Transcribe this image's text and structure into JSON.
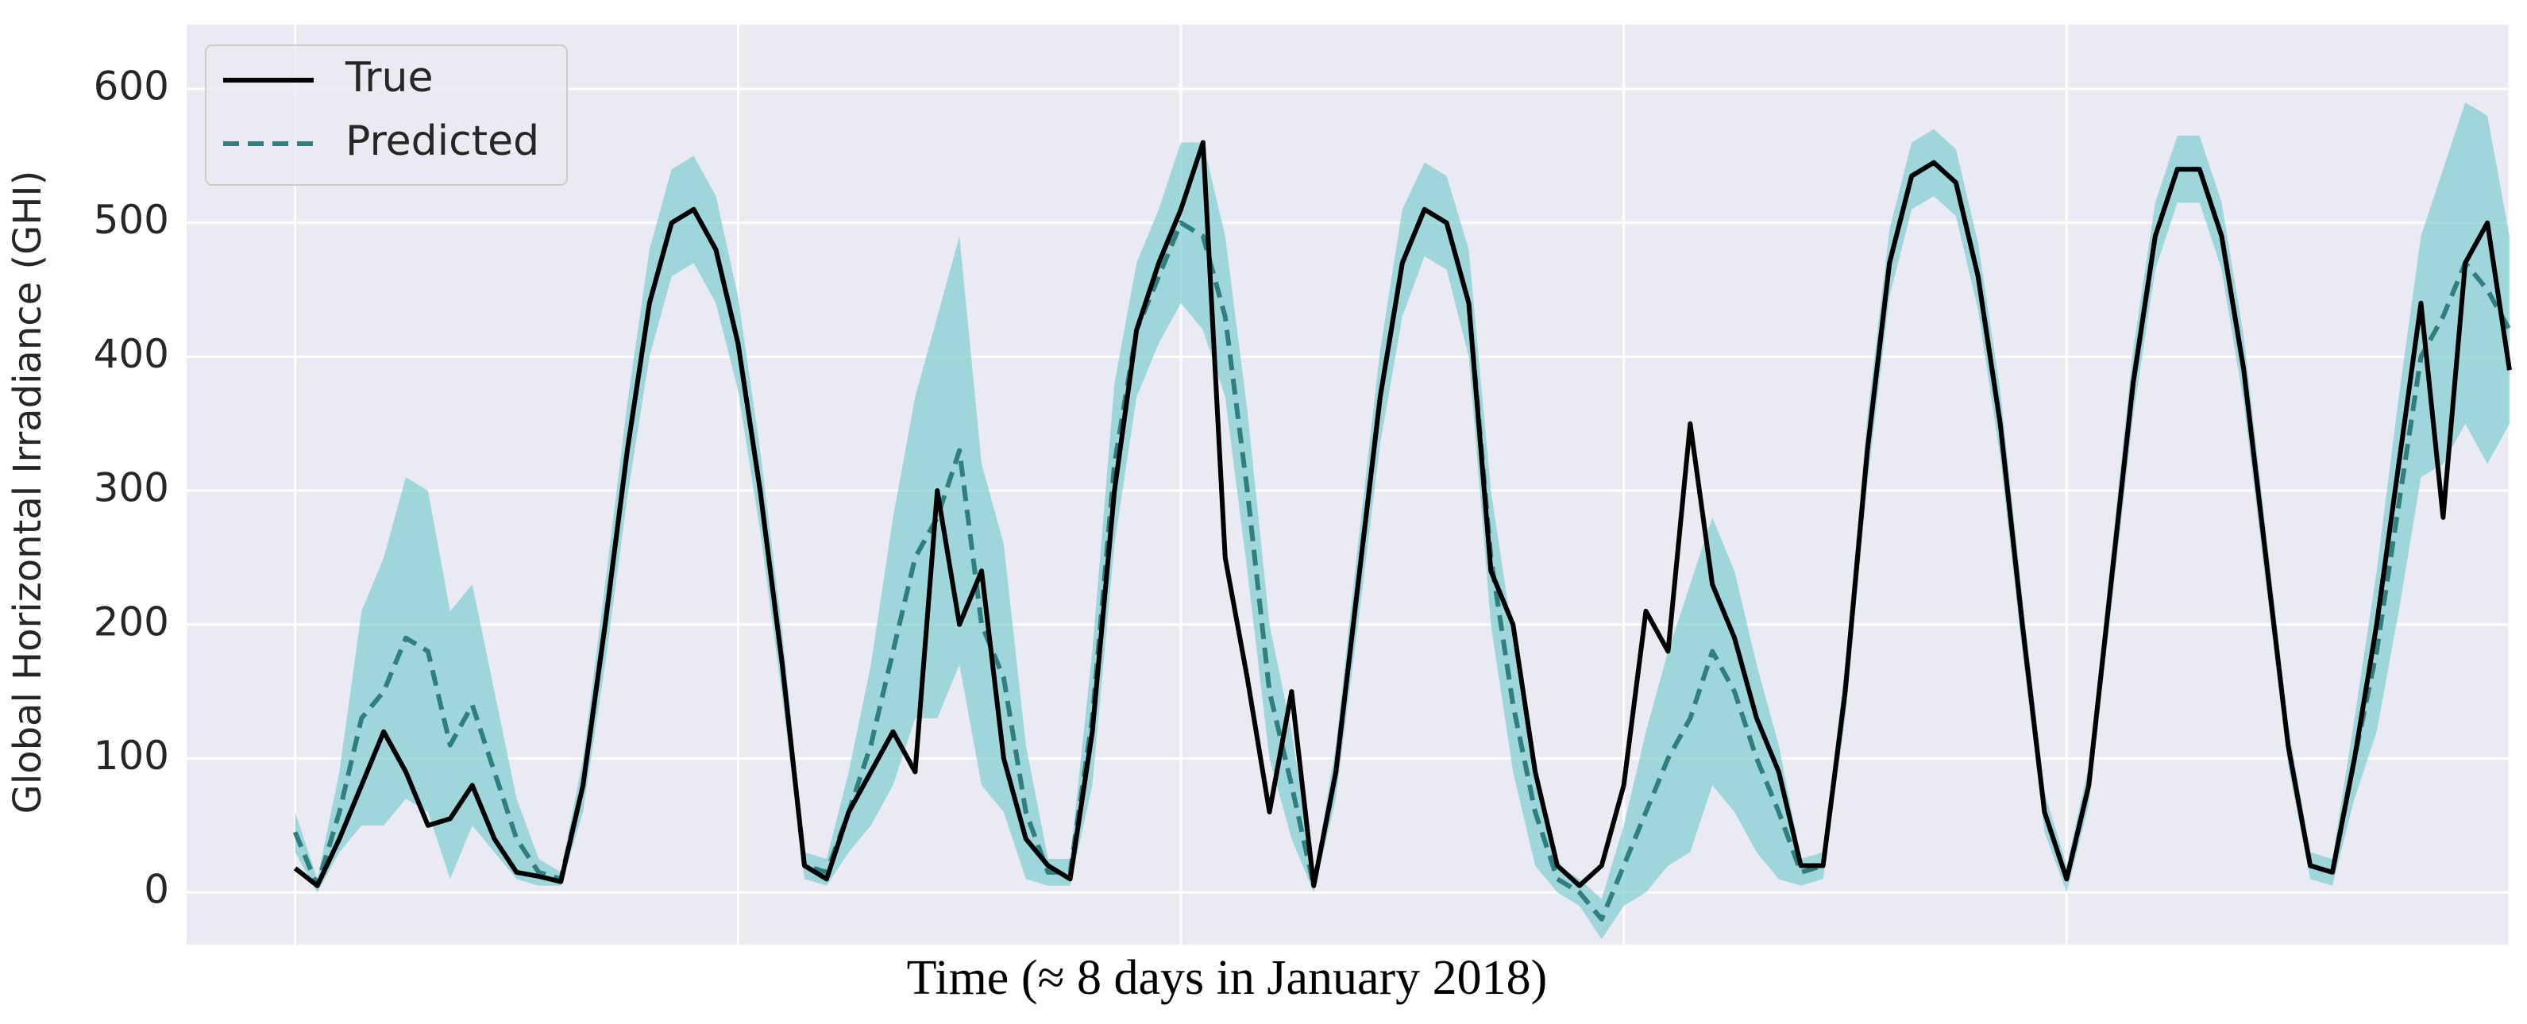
{
  "chart_data": {
    "type": "line",
    "x_label": "Time (≈ 8 days in January 2018)",
    "y_label": "Global Horizontal Irradiance (GHI)",
    "x": [
      0,
      10,
      20,
      30,
      40,
      50,
      60,
      70,
      80,
      90,
      100,
      110,
      120,
      130,
      140,
      150,
      160,
      170,
      180,
      190,
      200,
      210,
      220,
      230,
      240,
      250,
      260,
      270,
      280,
      290,
      300,
      310,
      320,
      330,
      340,
      350,
      360,
      370,
      380,
      390,
      400,
      410,
      420,
      430,
      440,
      450,
      460,
      470,
      480,
      490,
      500,
      510,
      520,
      530,
      540,
      550,
      560,
      570,
      580,
      590,
      600,
      610,
      620,
      630,
      640,
      650,
      660,
      670,
      680,
      690,
      700,
      710,
      720,
      730,
      740,
      750,
      760,
      770,
      780,
      790,
      800,
      810,
      820,
      830,
      840,
      850,
      860,
      870,
      880,
      890,
      900,
      910,
      920,
      930,
      940,
      950,
      960,
      970,
      980,
      990,
      1000
    ],
    "series": [
      {
        "name": "True",
        "color": "#000000",
        "dash": false,
        "values": [
          18,
          5,
          40,
          80,
          120,
          90,
          50,
          55,
          80,
          40,
          15,
          12,
          8,
          80,
          200,
          330,
          440,
          500,
          510,
          480,
          410,
          300,
          170,
          20,
          10,
          60,
          90,
          120,
          90,
          300,
          200,
          240,
          100,
          40,
          20,
          10,
          120,
          300,
          420,
          470,
          510,
          560,
          250,
          160,
          60,
          150,
          5,
          90,
          230,
          370,
          470,
          510,
          500,
          440,
          240,
          200,
          90,
          20,
          5,
          20,
          80,
          210,
          180,
          350,
          230,
          190,
          130,
          90,
          20,
          20,
          150,
          330,
          470,
          535,
          545,
          530,
          460,
          350,
          200,
          60,
          10,
          80,
          230,
          380,
          490,
          540,
          540,
          490,
          390,
          250,
          110,
          20,
          15,
          100,
          200,
          320,
          440,
          280,
          470,
          500,
          390
        ]
      },
      {
        "name": "Predicted",
        "color": "#2f7f7f",
        "dash": true,
        "band_color": "#86cfd0",
        "values": [
          45,
          5,
          60,
          130,
          150,
          190,
          180,
          110,
          140,
          90,
          40,
          15,
          10,
          80,
          200,
          330,
          440,
          500,
          510,
          480,
          410,
          300,
          170,
          20,
          15,
          60,
          110,
          180,
          250,
          280,
          330,
          200,
          160,
          60,
          15,
          15,
          130,
          320,
          420,
          460,
          500,
          490,
          430,
          300,
          150,
          80,
          5,
          90,
          230,
          370,
          470,
          510,
          500,
          440,
          250,
          140,
          60,
          10,
          0,
          -20,
          20,
          60,
          100,
          130,
          180,
          150,
          100,
          60,
          15,
          20,
          150,
          330,
          470,
          535,
          545,
          530,
          460,
          350,
          200,
          60,
          10,
          80,
          230,
          380,
          490,
          540,
          540,
          490,
          390,
          250,
          110,
          20,
          15,
          100,
          180,
          290,
          400,
          430,
          470,
          450,
          420
        ],
        "lower": [
          30,
          0,
          30,
          50,
          50,
          70,
          60,
          10,
          50,
          30,
          10,
          5,
          5,
          60,
          170,
          295,
          400,
          460,
          470,
          440,
          375,
          270,
          145,
          10,
          5,
          30,
          50,
          80,
          130,
          130,
          170,
          80,
          60,
          10,
          5,
          5,
          80,
          260,
          370,
          410,
          440,
          420,
          370,
          240,
          100,
          40,
          0,
          70,
          200,
          335,
          430,
          475,
          465,
          400,
          200,
          90,
          20,
          0,
          -10,
          -35,
          -10,
          0,
          20,
          30,
          80,
          60,
          30,
          10,
          5,
          10,
          130,
          305,
          445,
          510,
          520,
          505,
          435,
          325,
          180,
          45,
          0,
          65,
          210,
          355,
          465,
          515,
          515,
          465,
          365,
          230,
          95,
          10,
          5,
          70,
          120,
          210,
          310,
          320,
          350,
          320,
          350
        ],
        "upper": [
          60,
          10,
          90,
          210,
          250,
          310,
          300,
          210,
          230,
          150,
          70,
          25,
          15,
          100,
          230,
          365,
          480,
          540,
          550,
          520,
          445,
          330,
          195,
          30,
          25,
          90,
          170,
          280,
          370,
          430,
          490,
          320,
          260,
          110,
          25,
          25,
          180,
          380,
          470,
          510,
          560,
          560,
          490,
          360,
          200,
          120,
          10,
          110,
          260,
          405,
          510,
          545,
          535,
          480,
          300,
          190,
          100,
          20,
          10,
          -5,
          50,
          120,
          180,
          230,
          280,
          240,
          170,
          110,
          25,
          30,
          170,
          355,
          495,
          560,
          570,
          555,
          485,
          375,
          220,
          75,
          20,
          95,
          250,
          405,
          515,
          565,
          565,
          515,
          415,
          270,
          125,
          30,
          25,
          130,
          240,
          370,
          490,
          540,
          590,
          580,
          490
        ]
      }
    ],
    "xlim": [
      -49,
      1000
    ],
    "xticks": [
      0,
      200,
      400,
      600,
      800,
      1000
    ],
    "ylim": [
      -39,
      648
    ],
    "yticks": [
      0,
      100,
      200,
      300,
      400,
      500,
      600
    ],
    "grid": true,
    "legend": "upper left"
  }
}
